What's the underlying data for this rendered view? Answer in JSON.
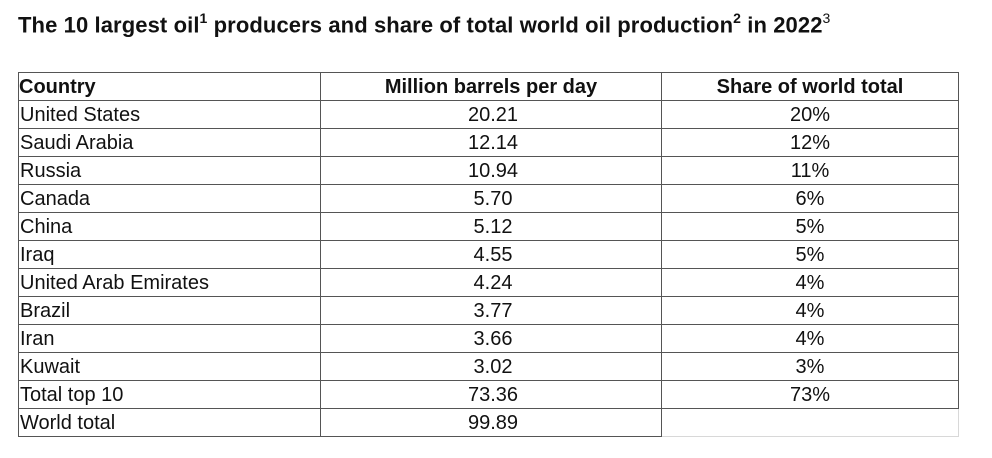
{
  "title": {
    "part1": "The 10 largest oil",
    "sup1": "1",
    "part2": " producers and share of total world oil production",
    "sup2": "2",
    "part3": " in 2022",
    "sup3": "3"
  },
  "table": {
    "headers": [
      "Country",
      "Million barrels per day",
      "Share of world total"
    ],
    "rows": [
      [
        "United States",
        "20.21",
        "20%"
      ],
      [
        "Saudi Arabia",
        "12.14",
        "12%"
      ],
      [
        "Russia",
        "10.94",
        "11%"
      ],
      [
        "Canada",
        "5.70",
        "6%"
      ],
      [
        "China",
        "5.12",
        "5%"
      ],
      [
        "Iraq",
        "4.55",
        "5%"
      ],
      [
        "United Arab Emirates",
        "4.24",
        "4%"
      ],
      [
        "Brazil",
        "3.77",
        "4%"
      ],
      [
        "Iran",
        "3.66",
        "4%"
      ],
      [
        "Kuwait",
        "3.02",
        "3%"
      ],
      [
        "Total top 10",
        "73.36",
        "73%"
      ],
      [
        "World total",
        "99.89",
        ""
      ]
    ]
  }
}
